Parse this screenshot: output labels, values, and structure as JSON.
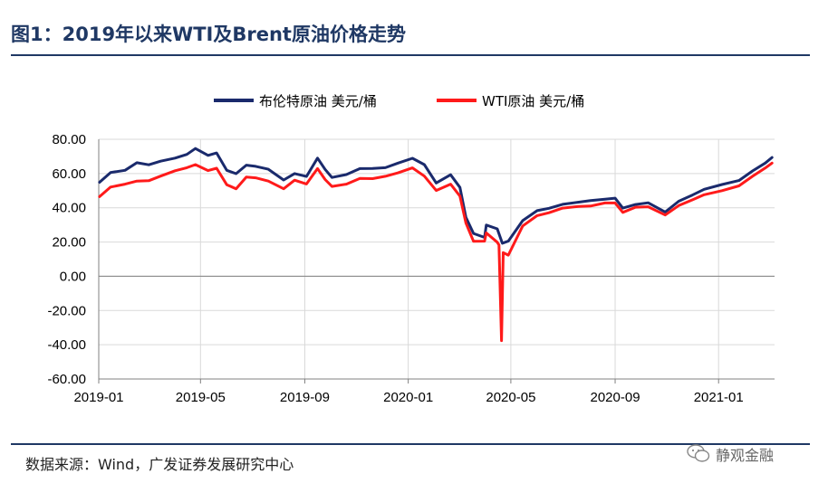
{
  "header": {
    "title": "图1：2019年以来WTI及Brent原油价格走势"
  },
  "footer": {
    "source": "数据来源：Wind，广发证券发展研究中心",
    "watermark": "静观金融"
  },
  "colors": {
    "brent": "#1a2a6c",
    "wti": "#ff1a1a",
    "title": "#1f3864",
    "grid": "#d9d9d9"
  },
  "chart_data": {
    "type": "line",
    "title": "",
    "xlabel": "",
    "ylabel": "",
    "ylim": [
      -60,
      80
    ],
    "y_ticks": [
      "80.00",
      "60.00",
      "40.00",
      "20.00",
      "0.00",
      "-20.00",
      "-40.00",
      "-60.00"
    ],
    "x_ticks": [
      "2019-01",
      "2019-05",
      "2019-09",
      "2020-01",
      "2020-05",
      "2020-09",
      "2021-01"
    ],
    "grid": true,
    "legend_position": "top-center",
    "series": [
      {
        "name": "布伦特原油 美元/桶",
        "color": "#1a2a6c",
        "points": [
          [
            "2019-01-02",
            54.9
          ],
          [
            "2019-01-15",
            60.6
          ],
          [
            "2019-02-01",
            61.9
          ],
          [
            "2019-02-15",
            66.3
          ],
          [
            "2019-03-01",
            65.1
          ],
          [
            "2019-03-15",
            67.2
          ],
          [
            "2019-04-01",
            69.0
          ],
          [
            "2019-04-15",
            71.2
          ],
          [
            "2019-04-25",
            74.6
          ],
          [
            "2019-05-10",
            70.6
          ],
          [
            "2019-05-20",
            72.0
          ],
          [
            "2019-06-01",
            61.9
          ],
          [
            "2019-06-12",
            59.9
          ],
          [
            "2019-06-24",
            64.9
          ],
          [
            "2019-07-05",
            64.2
          ],
          [
            "2019-07-20",
            62.5
          ],
          [
            "2019-08-07",
            56.2
          ],
          [
            "2019-08-20",
            60.0
          ],
          [
            "2019-09-03",
            58.3
          ],
          [
            "2019-09-16",
            69.0
          ],
          [
            "2019-09-25",
            62.4
          ],
          [
            "2019-10-03",
            57.7
          ],
          [
            "2019-10-20",
            59.4
          ],
          [
            "2019-11-05",
            62.9
          ],
          [
            "2019-11-20",
            63.0
          ],
          [
            "2019-12-05",
            63.4
          ],
          [
            "2019-12-20",
            66.1
          ],
          [
            "2020-01-06",
            68.9
          ],
          [
            "2020-01-20",
            65.2
          ],
          [
            "2020-02-03",
            54.5
          ],
          [
            "2020-02-20",
            59.3
          ],
          [
            "2020-03-02",
            51.9
          ],
          [
            "2020-03-09",
            34.4
          ],
          [
            "2020-03-18",
            25.0
          ],
          [
            "2020-03-31",
            22.7
          ],
          [
            "2020-04-02",
            29.9
          ],
          [
            "2020-04-15",
            27.7
          ],
          [
            "2020-04-21",
            19.3
          ],
          [
            "2020-04-28",
            20.5
          ],
          [
            "2020-05-15",
            32.5
          ],
          [
            "2020-06-01",
            38.3
          ],
          [
            "2020-06-15",
            39.7
          ],
          [
            "2020-07-01",
            42.0
          ],
          [
            "2020-07-20",
            43.3
          ],
          [
            "2020-08-03",
            44.2
          ],
          [
            "2020-08-20",
            45.0
          ],
          [
            "2020-09-01",
            45.6
          ],
          [
            "2020-09-10",
            39.8
          ],
          [
            "2020-09-25",
            41.9
          ],
          [
            "2020-10-10",
            42.9
          ],
          [
            "2020-10-30",
            37.5
          ],
          [
            "2020-11-15",
            43.8
          ],
          [
            "2020-12-01",
            47.4
          ],
          [
            "2020-12-15",
            50.8
          ],
          [
            "2021-01-05",
            53.6
          ],
          [
            "2021-01-25",
            55.9
          ],
          [
            "2021-02-10",
            61.5
          ],
          [
            "2021-02-25",
            66.1
          ],
          [
            "2021-03-05",
            69.4
          ]
        ]
      },
      {
        "name": "WTI原油 美元/桶",
        "color": "#ff1a1a",
        "points": [
          [
            "2019-01-02",
            46.5
          ],
          [
            "2019-01-15",
            52.1
          ],
          [
            "2019-02-01",
            53.8
          ],
          [
            "2019-02-15",
            55.6
          ],
          [
            "2019-03-01",
            55.8
          ],
          [
            "2019-03-15",
            58.5
          ],
          [
            "2019-04-01",
            61.6
          ],
          [
            "2019-04-15",
            63.4
          ],
          [
            "2019-04-25",
            65.2
          ],
          [
            "2019-05-10",
            61.7
          ],
          [
            "2019-05-20",
            63.1
          ],
          [
            "2019-06-01",
            53.5
          ],
          [
            "2019-06-12",
            51.1
          ],
          [
            "2019-06-24",
            57.9
          ],
          [
            "2019-07-05",
            57.5
          ],
          [
            "2019-07-20",
            55.6
          ],
          [
            "2019-08-07",
            51.1
          ],
          [
            "2019-08-20",
            56.1
          ],
          [
            "2019-09-03",
            53.9
          ],
          [
            "2019-09-16",
            62.9
          ],
          [
            "2019-09-25",
            56.5
          ],
          [
            "2019-10-03",
            52.5
          ],
          [
            "2019-10-20",
            53.8
          ],
          [
            "2019-11-05",
            57.2
          ],
          [
            "2019-11-20",
            57.0
          ],
          [
            "2019-12-05",
            58.4
          ],
          [
            "2019-12-20",
            60.4
          ],
          [
            "2020-01-06",
            63.3
          ],
          [
            "2020-01-20",
            58.5
          ],
          [
            "2020-02-03",
            50.1
          ],
          [
            "2020-02-20",
            53.8
          ],
          [
            "2020-03-02",
            46.8
          ],
          [
            "2020-03-09",
            31.1
          ],
          [
            "2020-03-18",
            20.4
          ],
          [
            "2020-03-31",
            20.5
          ],
          [
            "2020-04-02",
            25.3
          ],
          [
            "2020-04-15",
            19.9
          ],
          [
            "2020-04-17",
            18.3
          ],
          [
            "2020-04-20",
            -37.6
          ],
          [
            "2020-04-22",
            13.8
          ],
          [
            "2020-04-28",
            12.3
          ],
          [
            "2020-05-15",
            29.4
          ],
          [
            "2020-06-01",
            35.4
          ],
          [
            "2020-06-15",
            37.1
          ],
          [
            "2020-07-01",
            39.8
          ],
          [
            "2020-07-20",
            40.8
          ],
          [
            "2020-08-03",
            41.0
          ],
          [
            "2020-08-20",
            42.8
          ],
          [
            "2020-09-01",
            42.8
          ],
          [
            "2020-09-10",
            37.3
          ],
          [
            "2020-09-25",
            40.3
          ],
          [
            "2020-10-10",
            40.6
          ],
          [
            "2020-10-30",
            35.8
          ],
          [
            "2020-11-15",
            41.3
          ],
          [
            "2020-12-01",
            44.6
          ],
          [
            "2020-12-15",
            47.6
          ],
          [
            "2021-01-05",
            50.0
          ],
          [
            "2021-01-25",
            52.8
          ],
          [
            "2021-02-10",
            58.4
          ],
          [
            "2021-02-25",
            63.2
          ],
          [
            "2021-03-05",
            66.1
          ]
        ]
      }
    ]
  }
}
